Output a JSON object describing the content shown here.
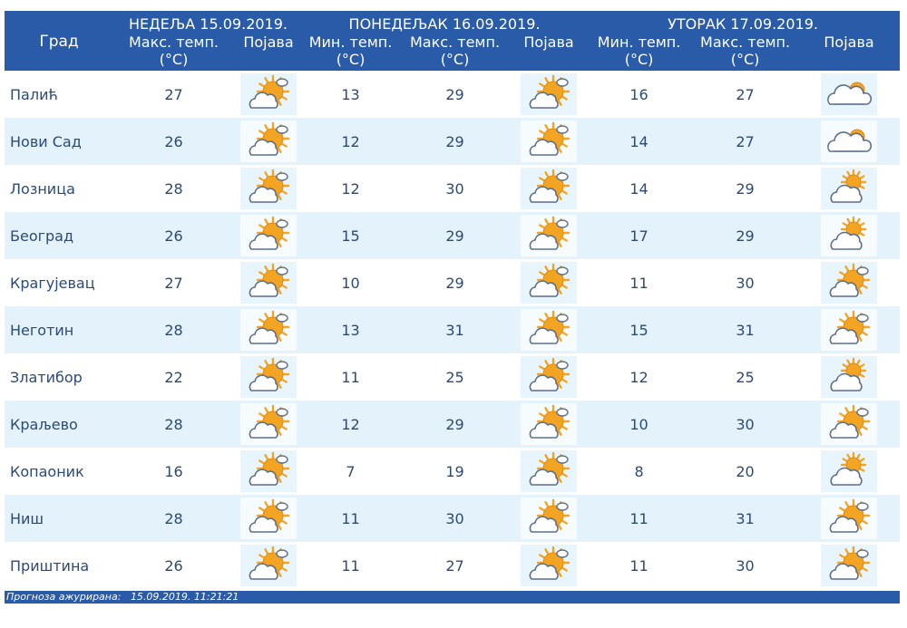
{
  "header": {
    "city_label": "Град",
    "days": [
      {
        "title": "НЕДЕЉА  15.09.2019.",
        "cols": [
          "Макс. темп. (°C)",
          "Појава"
        ]
      },
      {
        "title": "ПОНЕДЕЉАК  16.09.2019.",
        "cols": [
          "Мин. темп. (°C)",
          "Макс. темп. (°C)",
          "Појава"
        ]
      },
      {
        "title": "УТОРАК  17.09.2019.",
        "cols": [
          "Мин. темп. (°C)",
          "Макс. темп. (°C)",
          "Појава"
        ]
      }
    ]
  },
  "colors": {
    "header_bg": "#2a5ba8",
    "row_alt": "#e4f2fb",
    "text": "#2a4a78",
    "sun": "#f4a423",
    "cloud": "#ffffff"
  },
  "rows": [
    {
      "city": "Палић",
      "d1_max": "27",
      "d1_icon": "sun-cloud-icon",
      "d2_min": "13",
      "d2_max": "29",
      "d2_icon": "sun-cloud-icon",
      "d3_min": "16",
      "d3_max": "27",
      "d3_icon": "cloudy-icon"
    },
    {
      "city": "Нови Сад",
      "d1_max": "26",
      "d1_icon": "sun-cloud-icon",
      "d2_min": "12",
      "d2_max": "29",
      "d2_icon": "sun-cloud-icon",
      "d3_min": "14",
      "d3_max": "27",
      "d3_icon": "cloudy-icon"
    },
    {
      "city": "Лозница",
      "d1_max": "28",
      "d1_icon": "sun-cloud-icon",
      "d2_min": "12",
      "d2_max": "30",
      "d2_icon": "sun-cloud-icon",
      "d3_min": "14",
      "d3_max": "29",
      "d3_icon": "partly-cloudy-icon"
    },
    {
      "city": "Београд",
      "d1_max": "26",
      "d1_icon": "sun-cloud-icon",
      "d2_min": "15",
      "d2_max": "29",
      "d2_icon": "sun-cloud-icon",
      "d3_min": "17",
      "d3_max": "29",
      "d3_icon": "partly-cloudy-icon"
    },
    {
      "city": "Крагујевац",
      "d1_max": "27",
      "d1_icon": "sun-cloud-icon",
      "d2_min": "10",
      "d2_max": "29",
      "d2_icon": "sun-cloud-icon",
      "d3_min": "11",
      "d3_max": "30",
      "d3_icon": "sun-cloud-icon"
    },
    {
      "city": "Неготин",
      "d1_max": "28",
      "d1_icon": "sun-cloud-icon",
      "d2_min": "13",
      "d2_max": "31",
      "d2_icon": "sun-cloud-icon",
      "d3_min": "15",
      "d3_max": "31",
      "d3_icon": "sun-cloud-icon"
    },
    {
      "city": "Златибор",
      "d1_max": "22",
      "d1_icon": "sun-cloud-icon",
      "d2_min": "11",
      "d2_max": "25",
      "d2_icon": "sun-cloud-icon",
      "d3_min": "12",
      "d3_max": "25",
      "d3_icon": "partly-cloudy-icon"
    },
    {
      "city": "Краљево",
      "d1_max": "28",
      "d1_icon": "sun-cloud-icon",
      "d2_min": "12",
      "d2_max": "29",
      "d2_icon": "sun-cloud-icon",
      "d3_min": "10",
      "d3_max": "30",
      "d3_icon": "sun-cloud-icon"
    },
    {
      "city": "Копаоник",
      "d1_max": "16",
      "d1_icon": "sun-cloud-icon",
      "d2_min": "7",
      "d2_max": "19",
      "d2_icon": "sun-cloud-icon",
      "d3_min": "8",
      "d3_max": "20",
      "d3_icon": "partly-cloudy-icon"
    },
    {
      "city": "Ниш",
      "d1_max": "28",
      "d1_icon": "sun-cloud-icon",
      "d2_min": "11",
      "d2_max": "30",
      "d2_icon": "sun-cloud-icon",
      "d3_min": "11",
      "d3_max": "31",
      "d3_icon": "sun-cloud-icon"
    },
    {
      "city": "Приштина",
      "d1_max": "26",
      "d1_icon": "sun-cloud-icon",
      "d2_min": "11",
      "d2_max": "27",
      "d2_icon": "sun-cloud-icon",
      "d3_min": "11",
      "d3_max": "30",
      "d3_icon": "sun-cloud-icon"
    }
  ],
  "footer": {
    "label": "Прогноза ажурирана:",
    "value": "15.09.2019. 11:21:21"
  }
}
